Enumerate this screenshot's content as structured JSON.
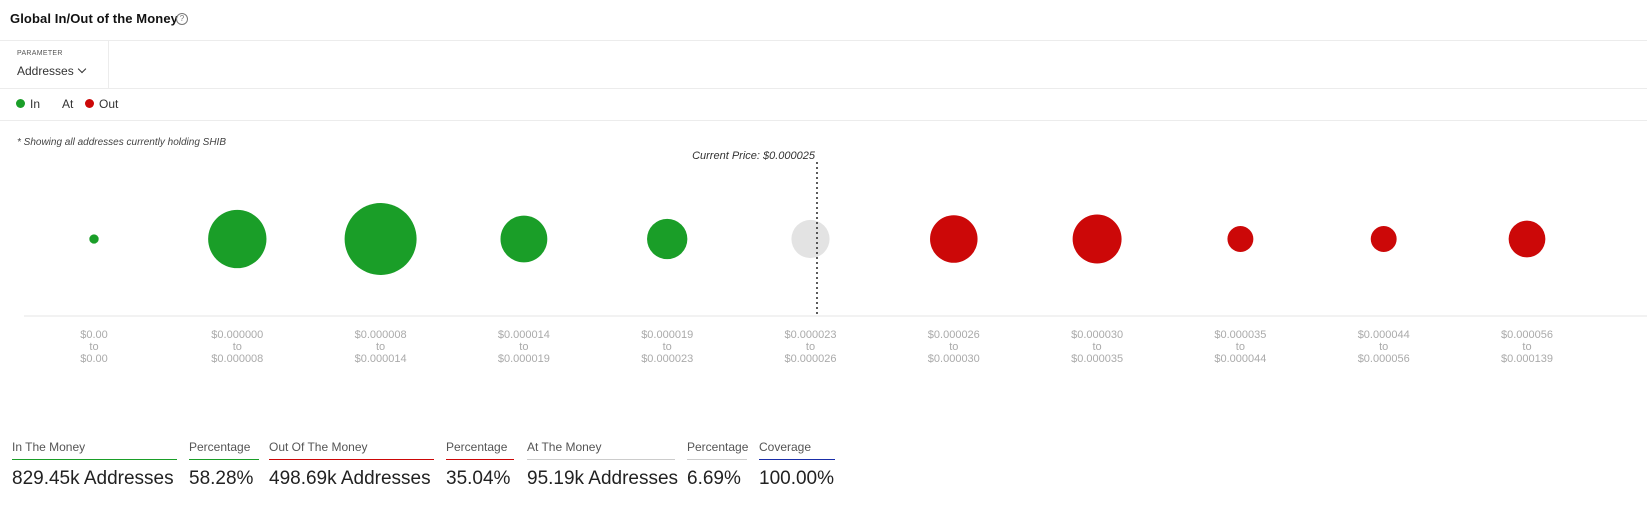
{
  "header": {
    "title": "Global In/Out of the Money",
    "help_icon": "question-circle-icon"
  },
  "parameter": {
    "label": "PARAMETER",
    "selected": "Addresses"
  },
  "legend": [
    {
      "label": "In",
      "color": "#1a9e28"
    },
    {
      "label": "At",
      "color": "#e3e3e3"
    },
    {
      "label": "Out",
      "color": "#cc0808"
    }
  ],
  "note": "* Showing all addresses currently holding SHIB",
  "chart_data": {
    "type": "bubble",
    "title": "",
    "current_price_label": "Current Price: $0.000025",
    "current_price": 2.5e-05,
    "categories": [
      {
        "from": "$0.00",
        "to": "$0.00",
        "status": "In",
        "relative_size": 0.13
      },
      {
        "from": "$0.000000",
        "to": "$0.000008",
        "status": "In",
        "relative_size": 0.81
      },
      {
        "from": "$0.000008",
        "to": "$0.000014",
        "status": "In",
        "relative_size": 1.0
      },
      {
        "from": "$0.000014",
        "to": "$0.000019",
        "status": "In",
        "relative_size": 0.65
      },
      {
        "from": "$0.000019",
        "to": "$0.000023",
        "status": "In",
        "relative_size": 0.56
      },
      {
        "from": "$0.000023",
        "to": "$0.000026",
        "status": "At",
        "relative_size": 0.53
      },
      {
        "from": "$0.000026",
        "to": "$0.000030",
        "status": "Out",
        "relative_size": 0.66
      },
      {
        "from": "$0.000030",
        "to": "$0.000035",
        "status": "Out",
        "relative_size": 0.68
      },
      {
        "from": "$0.000035",
        "to": "$0.000044",
        "status": "Out",
        "relative_size": 0.36
      },
      {
        "from": "$0.000044",
        "to": "$0.000056",
        "status": "Out",
        "relative_size": 0.36
      },
      {
        "from": "$0.000056",
        "to": "$0.000139",
        "status": "Out",
        "relative_size": 0.51
      }
    ],
    "range_connector": "to",
    "colors": {
      "In": "#1a9e28",
      "At": "#e3e3e3",
      "Out": "#cc0808"
    }
  },
  "stats": [
    {
      "label": "In The Money",
      "value": "829.45k Addresses",
      "accent": "#1a9e28"
    },
    {
      "label": "Percentage",
      "value": "58.28%",
      "accent": "#1a9e28"
    },
    {
      "label": "Out Of The Money",
      "value": "498.69k Addresses",
      "accent": "#cc0808"
    },
    {
      "label": "Percentage",
      "value": "35.04%",
      "accent": "#cc0808"
    },
    {
      "label": "At The Money",
      "value": "95.19k Addresses",
      "accent": "#cccccc"
    },
    {
      "label": "Percentage",
      "value": "6.69%",
      "accent": "#cccccc"
    },
    {
      "label": "Coverage",
      "value": "100.00%",
      "accent": "#1a2ea8"
    }
  ]
}
